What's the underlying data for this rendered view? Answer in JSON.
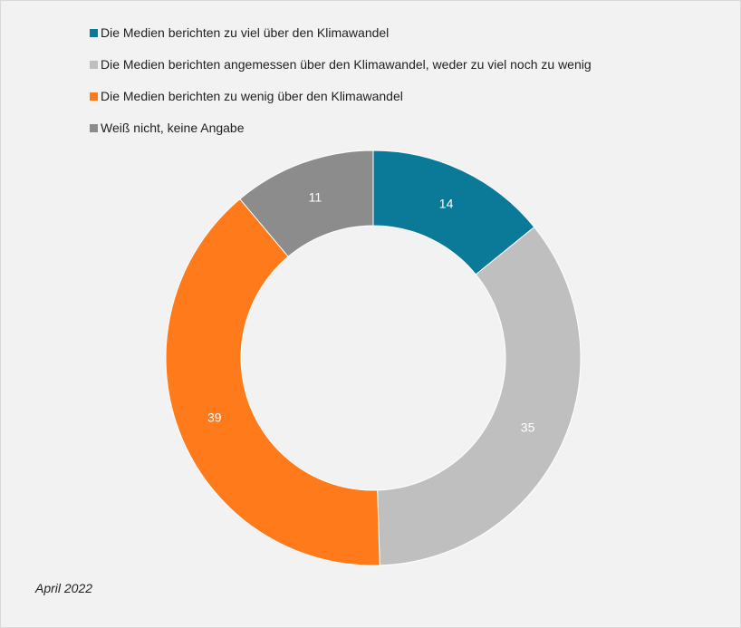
{
  "chart_data": {
    "type": "pie",
    "subtype": "donut",
    "title": "",
    "categories": [
      "Die Medien berichten zu viel über den Klimawandel",
      "Die Medien berichten angemessen über den Klimawandel, weder zu viel noch zu wenig",
      "Die Medien berichten zu wenig über den Klimawandel",
      "Weiß nicht, keine Angabe"
    ],
    "values": [
      14,
      35,
      39,
      11
    ],
    "value_labels": [
      "14",
      "35",
      "39",
      "11"
    ],
    "colors": [
      "#0b7a99",
      "#bfbfbf",
      "#ff7a1a",
      "#8c8c8c"
    ],
    "legend_position": "top-left",
    "start_angle": "12 o'clock",
    "direction": "clockwise"
  },
  "footer": {
    "note": "April 2022"
  }
}
